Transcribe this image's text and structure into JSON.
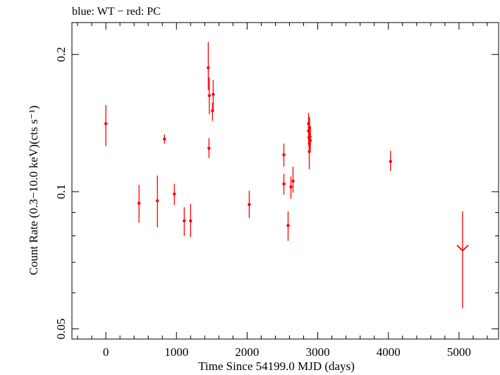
{
  "chart_data": {
    "type": "scatter",
    "title": "blue: WT − red: PC",
    "xlabel": "Time Since 54199.0 MJD (days)",
    "ylabel": "Count Rate (0.3−10.0 keV)(cts s⁻¹)",
    "xlim": [
      -480,
      5560
    ],
    "ylim": [
      0.0475,
      0.235
    ],
    "yscale": "log",
    "x_ticks": [
      "0",
      "1000",
      "2000",
      "3000",
      "4000",
      "5000"
    ],
    "y_ticks": [
      "0.05",
      "0.1",
      "0.2"
    ],
    "series": [
      {
        "color": "#ff0000",
        "points": [
          {
            "x": 0,
            "y": 0.141,
            "ylo": 0.126,
            "yhi": 0.155
          },
          {
            "x": 470,
            "y": 0.0943,
            "ylo": 0.0855,
            "yhi": 0.1035
          },
          {
            "x": 730,
            "y": 0.0955,
            "ylo": 0.0835,
            "yhi": 0.1085
          },
          {
            "x": 830,
            "y": 0.1305,
            "ylo": 0.1275,
            "yhi": 0.1335
          },
          {
            "x": 970,
            "y": 0.0988,
            "ylo": 0.0935,
            "yhi": 0.104
          },
          {
            "x": 1110,
            "y": 0.0863,
            "ylo": 0.08,
            "yhi": 0.0925
          },
          {
            "x": 1200,
            "y": 0.0863,
            "ylo": 0.0795,
            "yhi": 0.094
          },
          {
            "x": 1450,
            "y": 0.187,
            "ylo": 0.167,
            "yhi": 0.213
          },
          {
            "x": 1460,
            "y": 0.1245,
            "ylo": 0.1185,
            "yhi": 0.131
          },
          {
            "x": 1465,
            "y": 0.1625,
            "ylo": 0.148,
            "yhi": 0.178
          },
          {
            "x": 1510,
            "y": 0.1505,
            "ylo": 0.143,
            "yhi": 0.157
          },
          {
            "x": 1520,
            "y": 0.1635,
            "ylo": 0.151,
            "yhi": 0.176
          },
          {
            "x": 2030,
            "y": 0.0937,
            "ylo": 0.0875,
            "yhi": 0.1005
          },
          {
            "x": 2520,
            "y": 0.1205,
            "ylo": 0.1135,
            "yhi": 0.1275
          },
          {
            "x": 2520,
            "y": 0.104,
            "ylo": 0.0985,
            "yhi": 0.1095
          },
          {
            "x": 2580,
            "y": 0.0843,
            "ylo": 0.078,
            "yhi": 0.0905
          },
          {
            "x": 2620,
            "y": 0.1025,
            "ylo": 0.0965,
            "yhi": 0.108
          },
          {
            "x": 2650,
            "y": 0.1055,
            "ylo": 0.0995,
            "yhi": 0.1135
          },
          {
            "x": 2870,
            "y": 0.141,
            "ylo": 0.134,
            "yhi": 0.149
          },
          {
            "x": 2870,
            "y": 0.136,
            "ylo": 0.128,
            "yhi": 0.145
          },
          {
            "x": 2875,
            "y": 0.1315,
            "ylo": 0.125,
            "yhi": 0.138
          },
          {
            "x": 2880,
            "y": 0.1275,
            "ylo": 0.121,
            "yhi": 0.1345
          },
          {
            "x": 2880,
            "y": 0.1225,
            "ylo": 0.112,
            "yhi": 0.133
          },
          {
            "x": 2885,
            "y": 0.138,
            "ylo": 0.131,
            "yhi": 0.146
          },
          {
            "x": 2890,
            "y": 0.132,
            "ylo": 0.125,
            "yhi": 0.1395
          },
          {
            "x": 2895,
            "y": 0.1295,
            "ylo": 0.123,
            "yhi": 0.137
          },
          {
            "x": 4030,
            "y": 0.1165,
            "ylo": 0.111,
            "yhi": 0.123
          }
        ],
        "upper_limits": [
          {
            "x": 5050,
            "y": 0.0742,
            "ylo": 0.0555,
            "yhi": 0.0905
          }
        ]
      }
    ]
  }
}
